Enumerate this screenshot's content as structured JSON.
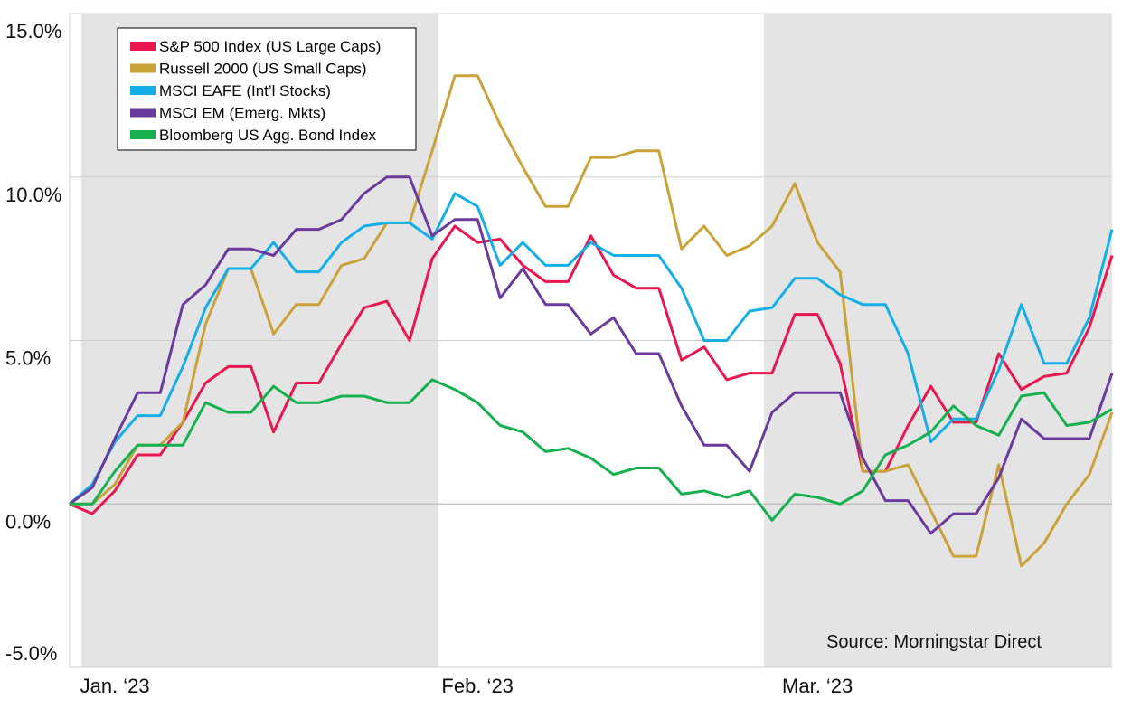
{
  "chart_data": {
    "type": "line",
    "categories": [
      null,
      null,
      "Jan. ‘23",
      null,
      null,
      null,
      null,
      null,
      null,
      null,
      null,
      null,
      null,
      null,
      null,
      null,
      null,
      null,
      "Feb. ‘23",
      null,
      null,
      null,
      null,
      null,
      null,
      null,
      null,
      null,
      null,
      null,
      null,
      null,
      null,
      "Mar. ‘23",
      null,
      null,
      null,
      null,
      null,
      null,
      null,
      null,
      null,
      null,
      null,
      null,
      null
    ],
    "series": [
      {
        "name": "S&P 500 Index (US Large Caps)",
        "color": "#e8174f",
        "values": [
          0,
          -0.3,
          0.4,
          1.5,
          1.5,
          2.5,
          3.7,
          4.2,
          4.2,
          2.2,
          3.7,
          3.7,
          4.9,
          6.0,
          6.2,
          5.0,
          7.5,
          8.5,
          8.0,
          8.1,
          7.3,
          6.8,
          6.8,
          8.2,
          7.0,
          6.6,
          6.6,
          4.4,
          4.8,
          3.8,
          4.0,
          4.0,
          5.8,
          5.8,
          4.3,
          1.0,
          1.0,
          2.4,
          3.6,
          2.5,
          2.5,
          4.6,
          3.5,
          3.9,
          4.0,
          5.4,
          7.6
        ]
      },
      {
        "name": "Russell 2000 (US Small Caps)",
        "color": "#c9a23a",
        "values": [
          0,
          0,
          0.6,
          1.8,
          1.8,
          2.5,
          5.5,
          7.2,
          7.2,
          5.2,
          6.1,
          6.1,
          7.3,
          7.5,
          8.6,
          8.6,
          10.8,
          13.1,
          13.1,
          11.6,
          10.3,
          9.1,
          9.1,
          10.6,
          10.6,
          10.8,
          10.8,
          7.8,
          8.5,
          7.6,
          7.9,
          8.5,
          9.8,
          8.0,
          7.1,
          1.0,
          1.0,
          1.2,
          -0.2,
          -1.6,
          -1.6,
          1.2,
          -1.9,
          -1.2,
          0.0,
          0.9,
          2.8
        ]
      },
      {
        "name": "MSCI EAFE (Int’l Stocks)",
        "color": "#16aee6",
        "values": [
          0,
          0.6,
          1.9,
          2.7,
          2.7,
          4.2,
          6.0,
          7.2,
          7.2,
          8.0,
          7.1,
          7.1,
          8.0,
          8.5,
          8.6,
          8.6,
          8.1,
          9.5,
          9.1,
          7.3,
          8.0,
          7.3,
          7.3,
          8.0,
          7.6,
          7.6,
          7.6,
          6.6,
          5.0,
          5.0,
          5.9,
          6.0,
          6.9,
          6.9,
          6.4,
          6.1,
          6.1,
          4.6,
          1.9,
          2.6,
          2.6,
          4.1,
          6.1,
          4.3,
          4.3,
          5.7,
          8.4
        ]
      },
      {
        "name": "MSCI EM (Emerg. Mkts)",
        "color": "#6a3a9c",
        "values": [
          0,
          0.5,
          2.0,
          3.4,
          3.4,
          6.1,
          6.7,
          7.8,
          7.8,
          7.6,
          8.4,
          8.4,
          8.7,
          9.5,
          10.0,
          10.0,
          8.2,
          8.7,
          8.7,
          6.3,
          7.2,
          6.1,
          6.1,
          5.2,
          5.7,
          4.6,
          4.6,
          3.0,
          1.8,
          1.8,
          1.0,
          2.8,
          3.4,
          3.4,
          3.4,
          1.4,
          0.1,
          0.1,
          -0.9,
          -0.3,
          -0.3,
          0.8,
          2.6,
          2.0,
          2.0,
          2.0,
          4.0
        ]
      },
      {
        "name": "Bloomberg US Agg. Bond Index",
        "color": "#16b04f",
        "values": [
          0,
          0,
          1.0,
          1.8,
          1.8,
          1.8,
          3.1,
          2.8,
          2.8,
          3.6,
          3.1,
          3.1,
          3.3,
          3.3,
          3.1,
          3.1,
          3.8,
          3.5,
          3.1,
          2.4,
          2.2,
          1.6,
          1.7,
          1.4,
          0.9,
          1.1,
          1.1,
          0.3,
          0.4,
          0.2,
          0.4,
          -0.5,
          0.3,
          0.2,
          0.0,
          0.4,
          1.5,
          1.8,
          2.2,
          3.0,
          2.4,
          2.1,
          3.3,
          3.4,
          2.4,
          2.5,
          2.9
        ]
      }
    ],
    "ylim": [
      -5,
      15
    ],
    "yticks": [
      {
        "value": -5,
        "label": "-5.0%"
      },
      {
        "value": 0,
        "label": "0.0%"
      },
      {
        "value": 5,
        "label": "5.0%"
      },
      {
        "value": 10,
        "label": "10.0%"
      },
      {
        "value": 15,
        "label": "15.0%"
      }
    ],
    "grid": true,
    "legend": "upper left",
    "annotation": "Source: Morningstar Direct"
  }
}
